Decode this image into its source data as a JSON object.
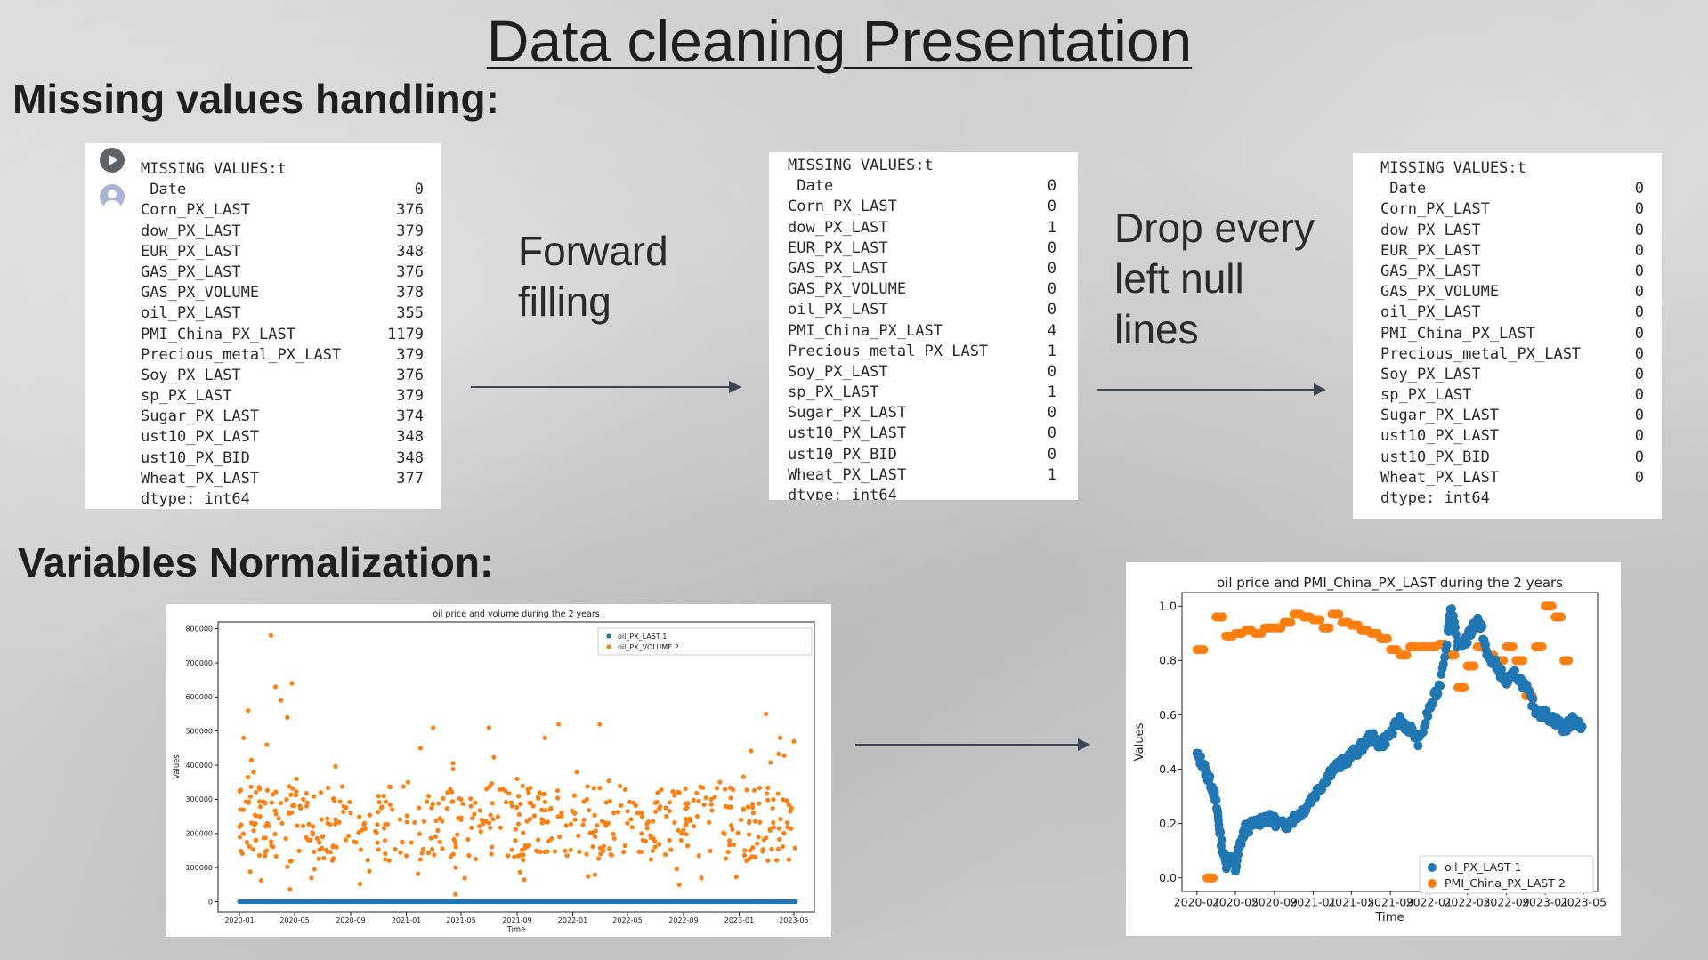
{
  "title": "Data cleaning Presentation",
  "headings": {
    "missing": "Missing values handling:",
    "normalization": "Variables Normalization:"
  },
  "captions": {
    "forward_fill": [
      "Forward",
      "filling"
    ],
    "drop_null": [
      "Drop every",
      "left null",
      "lines"
    ]
  },
  "panel1": {
    "header": "MISSING VALUES:t",
    "rows": [
      {
        "name": " Date",
        "value": "0"
      },
      {
        "name": "Corn_PX_LAST",
        "value": "376"
      },
      {
        "name": "dow_PX_LAST",
        "value": "379"
      },
      {
        "name": "EUR_PX_LAST",
        "value": "348"
      },
      {
        "name": "GAS_PX_LAST",
        "value": "376"
      },
      {
        "name": "GAS_PX_VOLUME",
        "value": "378"
      },
      {
        "name": "oil_PX_LAST",
        "value": "355"
      },
      {
        "name": "PMI_China_PX_LAST",
        "value": "1179"
      },
      {
        "name": "Precious_metal_PX_LAST",
        "value": "379"
      },
      {
        "name": "Soy_PX_LAST",
        "value": "376"
      },
      {
        "name": "sp_PX_LAST",
        "value": "379"
      },
      {
        "name": "Sugar_PX_LAST",
        "value": "374"
      },
      {
        "name": "ust10_PX_LAST",
        "value": "348"
      },
      {
        "name": "ust10_PX_BID",
        "value": "348"
      },
      {
        "name": "Wheat_PX_LAST",
        "value": "377"
      }
    ],
    "footer": "dtype: int64"
  },
  "panel2": {
    "header": "MISSING VALUES:t",
    "rows": [
      {
        "name": " Date",
        "value": "0"
      },
      {
        "name": "Corn_PX_LAST",
        "value": "0"
      },
      {
        "name": "dow_PX_LAST",
        "value": "1"
      },
      {
        "name": "EUR_PX_LAST",
        "value": "0"
      },
      {
        "name": "GAS_PX_LAST",
        "value": "0"
      },
      {
        "name": "GAS_PX_VOLUME",
        "value": "0"
      },
      {
        "name": "oil_PX_LAST",
        "value": "0"
      },
      {
        "name": "PMI_China_PX_LAST",
        "value": "4"
      },
      {
        "name": "Precious_metal_PX_LAST",
        "value": "1"
      },
      {
        "name": "Soy_PX_LAST",
        "value": "0"
      },
      {
        "name": "sp_PX_LAST",
        "value": "1"
      },
      {
        "name": "Sugar_PX_LAST",
        "value": "0"
      },
      {
        "name": "ust10_PX_LAST",
        "value": "0"
      },
      {
        "name": "ust10_PX_BID",
        "value": "0"
      },
      {
        "name": "Wheat_PX_LAST",
        "value": "1"
      }
    ],
    "footer": "dtype: int64"
  },
  "panel3": {
    "header": "MISSING VALUES:t",
    "rows": [
      {
        "name": " Date",
        "value": "0"
      },
      {
        "name": "Corn_PX_LAST",
        "value": "0"
      },
      {
        "name": "dow_PX_LAST",
        "value": "0"
      },
      {
        "name": "EUR_PX_LAST",
        "value": "0"
      },
      {
        "name": "GAS_PX_LAST",
        "value": "0"
      },
      {
        "name": "GAS_PX_VOLUME",
        "value": "0"
      },
      {
        "name": "oil_PX_LAST",
        "value": "0"
      },
      {
        "name": "PMI_China_PX_LAST",
        "value": "0"
      },
      {
        "name": "Precious_metal_PX_LAST",
        "value": "0"
      },
      {
        "name": "Soy_PX_LAST",
        "value": "0"
      },
      {
        "name": "sp_PX_LAST",
        "value": "0"
      },
      {
        "name": "Sugar_PX_LAST",
        "value": "0"
      },
      {
        "name": "ust10_PX_LAST",
        "value": "0"
      },
      {
        "name": "ust10_PX_BID",
        "value": "0"
      },
      {
        "name": "Wheat_PX_LAST",
        "value": "0"
      }
    ],
    "footer": "dtype: int64"
  },
  "icons": {
    "run": "play-circle-icon",
    "user": "user-avatar-icon"
  },
  "colors": {
    "series_blue": "#1f77b4",
    "series_orange": "#ff7f0e",
    "arrow": "#3a4556"
  },
  "chart_data": [
    {
      "type": "scatter",
      "title": "oil price and volume during the 2 years",
      "xlabel": "Time",
      "ylabel": "Values",
      "xlim": [
        "2019-11-15",
        "2023-06-15"
      ],
      "ylim": [
        -30000,
        820000
      ],
      "x_ticks": [
        "2020-01",
        "2020-05",
        "2020-09",
        "2021-01",
        "2021-05",
        "2021-09",
        "2022-01",
        "2022-05",
        "2022-09",
        "2023-01",
        "2023-05"
      ],
      "y_ticks": [
        0,
        100000,
        200000,
        300000,
        400000,
        500000,
        600000,
        700000,
        800000
      ],
      "legend": {
        "position": "top-right"
      },
      "series": [
        {
          "name": "oil_PX_LAST 1",
          "description": "oil prices near zero on this scale across 2020-01 to 2023-05",
          "x_range": [
            "2020-01-01",
            "2023-05-05"
          ],
          "values_approx": 0
        },
        {
          "name": "oil_PX_VOLUME 2",
          "description": "scattered daily volumes mostly between 100000 and 400000 with outliers up to about 780000 (2020-03)",
          "points": [
            [
              "2020-01-03",
              270000
            ],
            [
              "2020-01-10",
              480000
            ],
            [
              "2020-01-20",
              560000
            ],
            [
              "2020-02-01",
              380000
            ],
            [
              "2020-02-15",
              250000
            ],
            [
              "2020-03-01",
              460000
            ],
            [
              "2020-03-10",
              780000
            ],
            [
              "2020-03-20",
              630000
            ],
            [
              "2020-04-01",
              590000
            ],
            [
              "2020-04-15",
              540000
            ],
            [
              "2020-04-25",
              640000
            ],
            [
              "2020-05-05",
              360000
            ],
            [
              "2020-05-20",
              300000
            ],
            [
              "2020-06-10",
              220000
            ],
            [
              "2020-07-01",
              190000
            ],
            [
              "2020-08-01",
              160000
            ],
            [
              "2020-09-01",
              260000
            ],
            [
              "2020-10-01",
              230000
            ],
            [
              "2020-11-01",
              310000
            ],
            [
              "2020-12-01",
              270000
            ],
            [
              "2021-01-05",
              350000
            ],
            [
              "2021-02-01",
              450000
            ],
            [
              "2021-03-01",
              510000
            ],
            [
              "2021-04-01",
              320000
            ],
            [
              "2021-05-01",
              240000
            ],
            [
              "2021-06-01",
              290000
            ],
            [
              "2021-07-01",
              510000
            ],
            [
              "2021-08-01",
              330000
            ],
            [
              "2021-09-01",
              360000
            ],
            [
              "2021-10-01",
              290000
            ],
            [
              "2021-11-01",
              480000
            ],
            [
              "2021-12-01",
              520000
            ],
            [
              "2022-01-10",
              380000
            ],
            [
              "2022-02-01",
              300000
            ],
            [
              "2022-03-01",
              520000
            ],
            [
              "2022-04-01",
              260000
            ],
            [
              "2022-05-01",
              230000
            ],
            [
              "2022-06-01",
              200000
            ],
            [
              "2022-07-01",
              290000
            ],
            [
              "2022-08-01",
              180000
            ],
            [
              "2022-09-01",
              210000
            ],
            [
              "2022-10-01",
              250000
            ],
            [
              "2022-11-01",
              300000
            ],
            [
              "2022-12-01",
              330000
            ],
            [
              "2023-01-05",
              240000
            ],
            [
              "2023-02-01",
              260000
            ],
            [
              "2023-03-01",
              550000
            ],
            [
              "2023-04-01",
              480000
            ],
            [
              "2023-05-01",
              470000
            ]
          ]
        }
      ]
    },
    {
      "type": "scatter",
      "title": "oil price and PMI_China_PX_LAST during the 2 years",
      "xlabel": "Time",
      "ylabel": "Values",
      "xlim": [
        "2019-11-15",
        "2023-06-15"
      ],
      "ylim": [
        -0.05,
        1.05
      ],
      "x_ticks": [
        "2020-01",
        "2020-05",
        "2020-09",
        "2021-01",
        "2021-05",
        "2021-09",
        "2022-01",
        "2022-05",
        "2022-09",
        "2023-01",
        "2023-05"
      ],
      "y_ticks": [
        "0.0",
        "0.2",
        "0.4",
        "0.6",
        "0.8",
        "1.0"
      ],
      "legend": {
        "position": "bottom-right"
      },
      "series": [
        {
          "name": "oil_PX_LAST 1",
          "points": [
            [
              "2020-01-01",
              0.45
            ],
            [
              "2020-01-20",
              0.42
            ],
            [
              "2020-02-05",
              0.37
            ],
            [
              "2020-02-20",
              0.33
            ],
            [
              "2020-03-05",
              0.25
            ],
            [
              "2020-03-15",
              0.15
            ],
            [
              "2020-04-01",
              0.05
            ],
            [
              "2020-04-15",
              0.08
            ],
            [
              "2020-05-01",
              0.03
            ],
            [
              "2020-05-15",
              0.12
            ],
            [
              "2020-06-01",
              0.18
            ],
            [
              "2020-07-01",
              0.2
            ],
            [
              "2020-08-01",
              0.22
            ],
            [
              "2020-09-01",
              0.21
            ],
            [
              "2020-10-01",
              0.19
            ],
            [
              "2020-11-01",
              0.22
            ],
            [
              "2020-12-01",
              0.25
            ],
            [
              "2021-01-01",
              0.3
            ],
            [
              "2021-02-01",
              0.35
            ],
            [
              "2021-03-01",
              0.4
            ],
            [
              "2021-04-01",
              0.42
            ],
            [
              "2021-05-01",
              0.45
            ],
            [
              "2021-06-01",
              0.48
            ],
            [
              "2021-07-01",
              0.52
            ],
            [
              "2021-08-01",
              0.49
            ],
            [
              "2021-09-01",
              0.53
            ],
            [
              "2021-10-01",
              0.58
            ],
            [
              "2021-11-01",
              0.55
            ],
            [
              "2021-12-01",
              0.5
            ],
            [
              "2022-01-01",
              0.62
            ],
            [
              "2022-02-01",
              0.7
            ],
            [
              "2022-03-01",
              0.9
            ],
            [
              "2022-03-10",
              1.0
            ],
            [
              "2022-04-01",
              0.85
            ],
            [
              "2022-05-01",
              0.88
            ],
            [
              "2022-06-01",
              0.95
            ],
            [
              "2022-06-15",
              0.92
            ],
            [
              "2022-07-01",
              0.82
            ],
            [
              "2022-08-01",
              0.78
            ],
            [
              "2022-09-01",
              0.72
            ],
            [
              "2022-10-01",
              0.75
            ],
            [
              "2022-11-01",
              0.7
            ],
            [
              "2022-12-01",
              0.62
            ],
            [
              "2023-01-01",
              0.6
            ],
            [
              "2023-02-01",
              0.58
            ],
            [
              "2023-03-01",
              0.55
            ],
            [
              "2023-04-01",
              0.58
            ],
            [
              "2023-05-01",
              0.56
            ]
          ]
        },
        {
          "name": "PMI_China_PX_LAST 2",
          "points": [
            [
              "2020-01-01",
              0.84
            ],
            [
              "2020-02-01",
              0.0
            ],
            [
              "2020-03-01",
              0.96
            ],
            [
              "2020-04-01",
              0.89
            ],
            [
              "2020-05-01",
              0.9
            ],
            [
              "2020-06-01",
              0.91
            ],
            [
              "2020-07-01",
              0.9
            ],
            [
              "2020-08-01",
              0.92
            ],
            [
              "2020-09-01",
              0.92
            ],
            [
              "2020-10-01",
              0.94
            ],
            [
              "2020-11-01",
              0.97
            ],
            [
              "2020-12-01",
              0.96
            ],
            [
              "2021-01-01",
              0.95
            ],
            [
              "2021-02-01",
              0.92
            ],
            [
              "2021-03-01",
              0.97
            ],
            [
              "2021-04-01",
              0.94
            ],
            [
              "2021-05-01",
              0.93
            ],
            [
              "2021-06-01",
              0.91
            ],
            [
              "2021-07-01",
              0.9
            ],
            [
              "2021-08-01",
              0.88
            ],
            [
              "2021-09-01",
              0.84
            ],
            [
              "2021-10-01",
              0.82
            ],
            [
              "2021-11-01",
              0.85
            ],
            [
              "2021-12-01",
              0.85
            ],
            [
              "2022-01-01",
              0.85
            ],
            [
              "2022-02-01",
              0.86
            ],
            [
              "2022-03-01",
              0.82
            ],
            [
              "2022-04-01",
              0.7
            ],
            [
              "2022-05-01",
              0.78
            ],
            [
              "2022-06-01",
              0.85
            ],
            [
              "2022-07-01",
              0.82
            ],
            [
              "2022-08-01",
              0.8
            ],
            [
              "2022-09-01",
              0.85
            ],
            [
              "2022-10-01",
              0.8
            ],
            [
              "2022-11-01",
              0.67
            ],
            [
              "2022-12-01",
              0.85
            ],
            [
              "2023-01-01",
              1.0
            ],
            [
              "2023-02-01",
              0.96
            ],
            [
              "2023-03-01",
              0.8
            ]
          ]
        }
      ]
    }
  ]
}
